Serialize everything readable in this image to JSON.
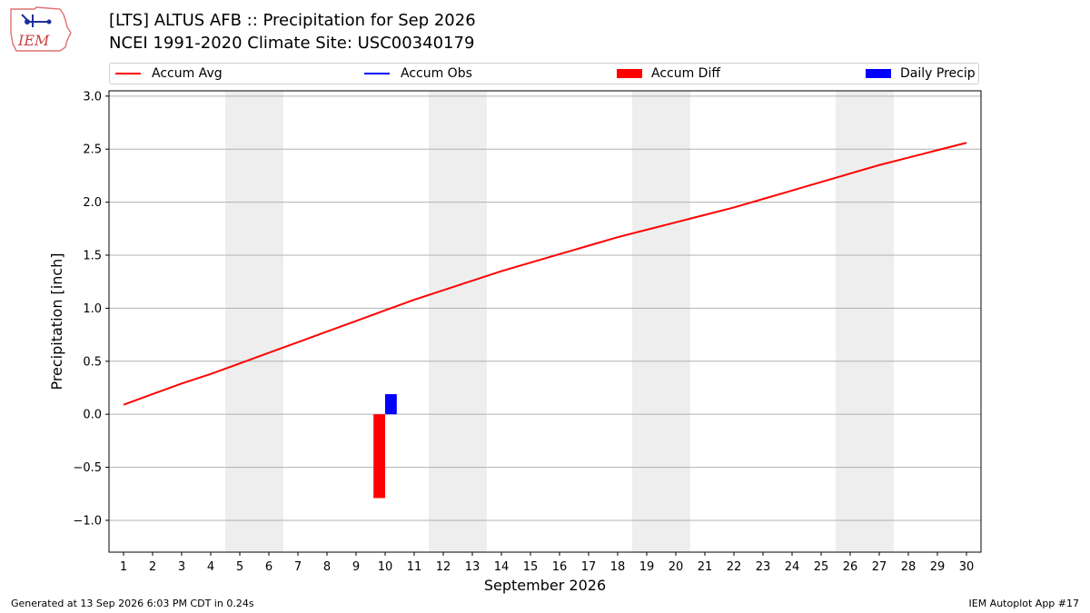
{
  "header": {
    "logo_text": "IEM",
    "title_line1": "[LTS] ALTUS AFB :: Precipitation for Sep 2026",
    "title_line2": "NCEI 1991-2020 Climate Site: USC00340179"
  },
  "footer": {
    "left": "Generated at 13 Sep 2026 6:03 PM CDT in 0.24s",
    "right": "IEM Autoplot App #17"
  },
  "colors": {
    "accum_avg": "#ff0000",
    "accum_obs": "#0000ff",
    "accum_diff": "#ff0000",
    "daily_precip": "#0000ff",
    "weekend_shade": "#eeeeee",
    "grid": "#b0b0b0"
  },
  "chart_data": {
    "type": "line",
    "xlabel": "September 2026",
    "ylabel": "Precipitation [inch]",
    "xlim": [
      0.5,
      30.5
    ],
    "ylim": [
      -1.3,
      3.05
    ],
    "x_ticks": [
      1,
      2,
      3,
      4,
      5,
      6,
      7,
      8,
      9,
      10,
      11,
      12,
      13,
      14,
      15,
      16,
      17,
      18,
      19,
      20,
      21,
      22,
      23,
      24,
      25,
      26,
      27,
      28,
      29,
      30
    ],
    "y_ticks": [
      -1.0,
      -0.5,
      0.0,
      0.5,
      1.0,
      1.5,
      2.0,
      2.5,
      3.0
    ],
    "y_tick_labels": [
      "−1.0",
      "−0.5",
      "0.0",
      "0.5",
      "1.0",
      "1.5",
      "2.0",
      "2.5",
      "3.0"
    ],
    "grid": "horizontal",
    "legend_placement": "top",
    "legend": [
      "Accum Avg",
      "Accum Obs",
      "Accum Diff",
      "Daily Precip"
    ],
    "weekend_spans": [
      [
        4.5,
        6.5
      ],
      [
        11.5,
        13.5
      ],
      [
        18.5,
        20.5
      ],
      [
        25.5,
        27.5
      ]
    ],
    "series": [
      {
        "name": "Accum Avg",
        "kind": "line",
        "x": [
          1,
          2,
          3,
          4,
          5,
          6,
          7,
          8,
          9,
          10,
          11,
          12,
          13,
          14,
          15,
          16,
          17,
          18,
          19,
          20,
          21,
          22,
          23,
          24,
          25,
          26,
          27,
          28,
          29,
          30
        ],
        "values": [
          0.09,
          0.19,
          0.29,
          0.38,
          0.48,
          0.58,
          0.68,
          0.78,
          0.88,
          0.98,
          1.08,
          1.17,
          1.26,
          1.35,
          1.43,
          1.51,
          1.59,
          1.67,
          1.74,
          1.81,
          1.88,
          1.95,
          2.03,
          2.11,
          2.19,
          2.27,
          2.35,
          2.42,
          2.49,
          2.56
        ]
      },
      {
        "name": "Accum Obs",
        "kind": "line",
        "x": [],
        "values": []
      },
      {
        "name": "Accum Diff",
        "kind": "bar",
        "x": [
          10
        ],
        "values": [
          -0.79
        ],
        "offset": -0.2
      },
      {
        "name": "Daily Precip",
        "kind": "bar",
        "x": [
          10
        ],
        "values": [
          0.19
        ],
        "offset": 0.2
      }
    ]
  }
}
